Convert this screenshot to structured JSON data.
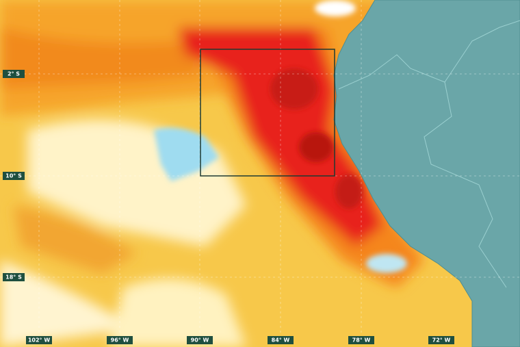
{
  "map": {
    "lat_labels": [
      "2° S",
      "10° S",
      "18° S"
    ],
    "lon_labels": [
      "102° W",
      "96° W",
      "90° W",
      "84° W",
      "78° W",
      "72° W"
    ]
  }
}
